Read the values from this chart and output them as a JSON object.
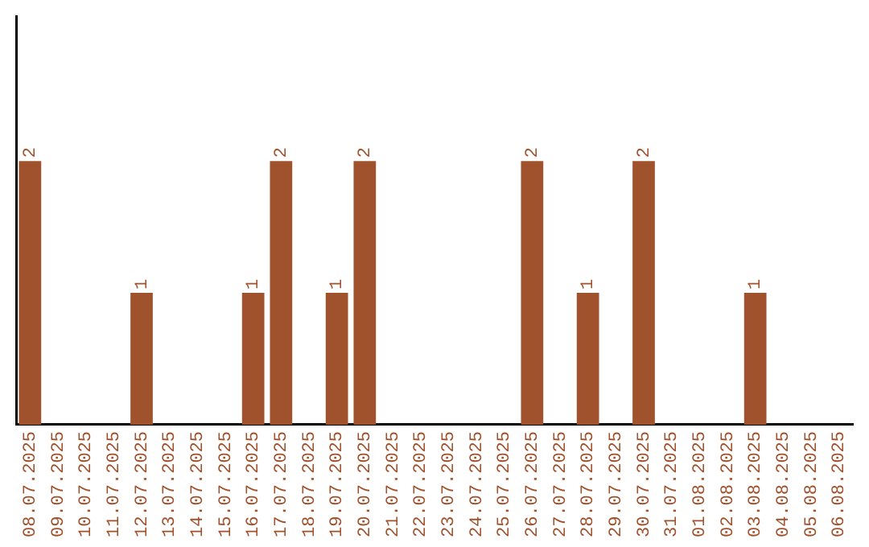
{
  "chart_data": {
    "type": "bar",
    "categories": [
      "08.07.2025",
      "09.07.2025",
      "10.07.2025",
      "11.07.2025",
      "12.07.2025",
      "13.07.2025",
      "14.07.2025",
      "15.07.2025",
      "16.07.2025",
      "17.07.2025",
      "18.07.2025",
      "19.07.2025",
      "20.07.2025",
      "21.07.2025",
      "22.07.2025",
      "23.07.2025",
      "24.07.2025",
      "25.07.2025",
      "26.07.2025",
      "27.07.2025",
      "28.07.2025",
      "29.07.2025",
      "30.07.2025",
      "31.07.2025",
      "01.08.2025",
      "02.08.2025",
      "03.08.2025",
      "04.08.2025",
      "05.08.2025",
      "06.08.2025"
    ],
    "values": [
      2,
      0,
      0,
      0,
      1,
      0,
      0,
      0,
      1,
      2,
      0,
      1,
      2,
      0,
      0,
      0,
      0,
      0,
      2,
      0,
      1,
      0,
      2,
      0,
      0,
      0,
      1,
      0,
      0,
      0
    ],
    "value_labels": [
      "2",
      null,
      null,
      null,
      "1",
      null,
      null,
      null,
      "1",
      "2",
      null,
      "1",
      "2",
      null,
      null,
      null,
      null,
      null,
      "2",
      null,
      "1",
      null,
      "2",
      null,
      null,
      null,
      "1",
      null,
      null,
      null
    ],
    "color": "#a0522d",
    "ylim": [
      0,
      3.1
    ],
    "tick_labels": "x",
    "grid": false,
    "legend": false
  }
}
